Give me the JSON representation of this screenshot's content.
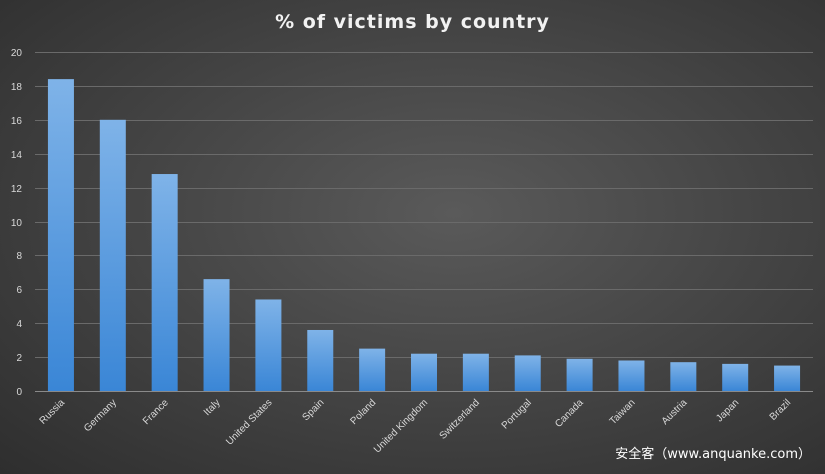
{
  "watermark": "安全客（www.anquanke.com）",
  "chart_data": {
    "type": "bar",
    "title": "% of victims by country",
    "xlabel": "",
    "ylabel": "",
    "ylim": [
      0,
      20
    ],
    "yticks": [
      0,
      2,
      4,
      6,
      8,
      10,
      12,
      14,
      16,
      18,
      20
    ],
    "grid": true,
    "legend": "none",
    "categories": [
      "Russia",
      "Germany",
      "France",
      "Italy",
      "United States",
      "Spain",
      "Poland",
      "United Kingdom",
      "Switzerland",
      "Portugal",
      "Canada",
      "Taiwan",
      "Austria",
      "Japan",
      "Brazil"
    ],
    "values": [
      18.4,
      16.0,
      12.8,
      6.6,
      5.4,
      3.6,
      2.5,
      2.2,
      2.2,
      2.1,
      1.9,
      1.8,
      1.7,
      1.6,
      1.5
    ],
    "bar_color_top": "#7fb3e8",
    "bar_color_bottom": "#3a86d6",
    "grid_color": "#6a6a6a"
  }
}
